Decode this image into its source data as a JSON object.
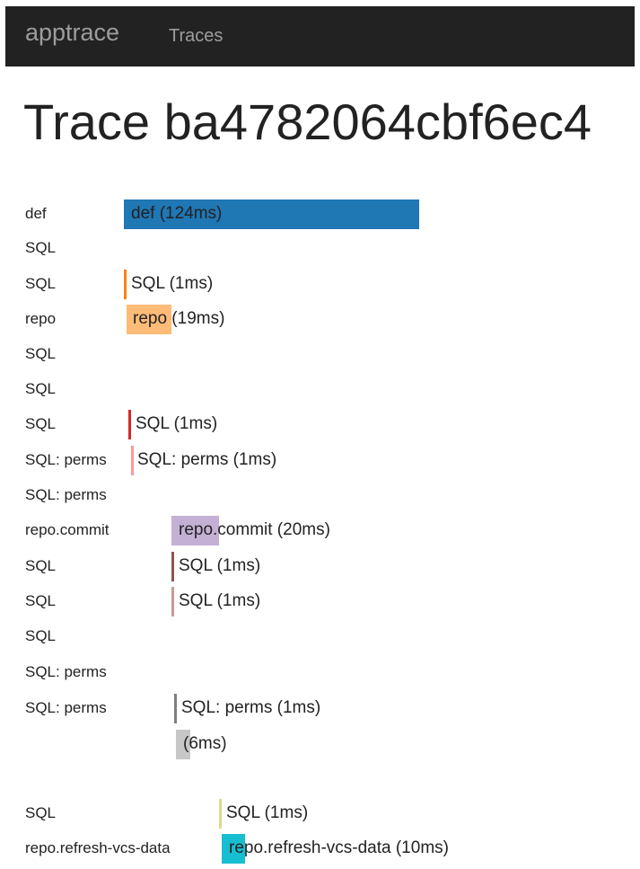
{
  "navbar": {
    "brand": "apptrace",
    "links": [
      "Traces"
    ]
  },
  "page": {
    "title": "Trace ba4782064cbf6ec4"
  },
  "spans": [
    {
      "label": "def",
      "bar_text": "def (124ms)",
      "color": "#1f77b4"
    },
    {
      "label": "SQL",
      "bar_text": "",
      "color": ""
    },
    {
      "label": "SQL",
      "bar_text": "SQL (1ms)",
      "color": "#ff7f0e"
    },
    {
      "label": "repo",
      "bar_text": "repo (19ms)",
      "color": "#ffbb78"
    },
    {
      "label": "SQL",
      "bar_text": "",
      "color": ""
    },
    {
      "label": "SQL",
      "bar_text": "",
      "color": ""
    },
    {
      "label": "SQL",
      "bar_text": "SQL (1ms)",
      "color": "#d62728"
    },
    {
      "label": "SQL: perms",
      "bar_text": "SQL: perms (1ms)",
      "color": "#ff9896"
    },
    {
      "label": "SQL: perms",
      "bar_text": "",
      "color": ""
    },
    {
      "label": "repo.commit",
      "bar_text": "repo.commit (20ms)",
      "color": "#c5b0d5"
    },
    {
      "label": "SQL",
      "bar_text": "SQL (1ms)",
      "color": "#8c564b"
    },
    {
      "label": "SQL",
      "bar_text": "SQL (1ms)",
      "color": "#c49c94"
    },
    {
      "label": "SQL",
      "bar_text": "",
      "color": ""
    },
    {
      "label": "SQL: perms",
      "bar_text": "",
      "color": ""
    },
    {
      "label": "SQL: perms",
      "bar_text": "SQL: perms (1ms)",
      "color": "#7f7f7f"
    },
    {
      "label": "",
      "bar_text": "(6ms)",
      "color": "#c7c7c7"
    },
    {
      "label": "SQL",
      "bar_text": "SQL (1ms)",
      "color": "#dbdb8d"
    },
    {
      "label": "repo.refresh-vcs-data",
      "bar_text": "repo.refresh-vcs-data (10ms)",
      "color": "#17becf"
    }
  ]
}
